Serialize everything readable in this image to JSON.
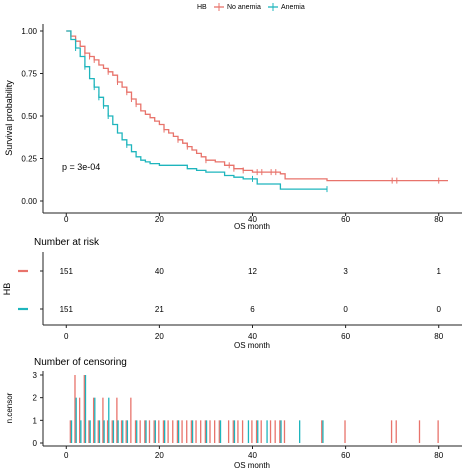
{
  "legend": {
    "title": "HB",
    "entries": [
      {
        "label": "No anemia",
        "color": "#e8736b"
      },
      {
        "label": "Anemia",
        "color": "#1eb5bd"
      }
    ]
  },
  "chart_data": [
    {
      "type": "line",
      "subtype": "kaplan-meier",
      "title": "",
      "xlabel": "OS month",
      "ylabel": "Survival probability",
      "xlim": [
        -5,
        85
      ],
      "ylim": [
        0,
        1
      ],
      "xticks": [
        "0",
        "20",
        "40",
        "60",
        "80"
      ],
      "yticks": [
        "0.00",
        "0.25",
        "0.50",
        "0.75",
        "1.00"
      ],
      "annotation": "p = 3e-04",
      "grid": false,
      "legend_position": "top",
      "series": [
        {
          "name": "No anemia",
          "color": "#e8736b",
          "x": [
            0,
            1,
            2,
            3,
            4,
            5,
            6,
            7,
            8,
            9,
            10,
            11,
            12,
            13,
            14,
            15,
            16,
            17,
            18,
            19,
            20,
            21,
            22,
            23,
            24,
            25,
            26,
            27,
            28,
            29,
            30,
            32,
            34,
            36,
            38,
            40,
            42,
            44,
            46,
            47,
            56,
            60,
            70,
            80,
            82
          ],
          "y": [
            1.0,
            0.97,
            0.94,
            0.91,
            0.87,
            0.85,
            0.83,
            0.8,
            0.78,
            0.76,
            0.74,
            0.7,
            0.67,
            0.64,
            0.6,
            0.57,
            0.53,
            0.51,
            0.49,
            0.47,
            0.45,
            0.42,
            0.4,
            0.38,
            0.36,
            0.34,
            0.32,
            0.3,
            0.28,
            0.26,
            0.24,
            0.23,
            0.21,
            0.19,
            0.18,
            0.17,
            0.17,
            0.17,
            0.16,
            0.13,
            0.12,
            0.12,
            0.12,
            0.12,
            0.12
          ],
          "censor_x": [
            1,
            2,
            4,
            5,
            6,
            9,
            11,
            13,
            14,
            15,
            21,
            24,
            26,
            30,
            35,
            36,
            38,
            41,
            42,
            44,
            45,
            70,
            71,
            80
          ]
        },
        {
          "name": "Anemia",
          "color": "#1eb5bd",
          "x": [
            0,
            1,
            2,
            3,
            4,
            5,
            6,
            7,
            8,
            9,
            10,
            11,
            12,
            13,
            14,
            15,
            16,
            17,
            18,
            20,
            22,
            24,
            26,
            28,
            30,
            34,
            36,
            38,
            40,
            41,
            46,
            56
          ],
          "y": [
            1.0,
            0.95,
            0.9,
            0.85,
            0.79,
            0.72,
            0.67,
            0.61,
            0.56,
            0.5,
            0.45,
            0.4,
            0.36,
            0.33,
            0.29,
            0.26,
            0.24,
            0.23,
            0.22,
            0.21,
            0.21,
            0.21,
            0.19,
            0.18,
            0.17,
            0.15,
            0.14,
            0.13,
            0.13,
            0.1,
            0.07,
            0.07
          ],
          "censor_x": [
            2,
            4,
            6,
            7,
            8,
            9,
            13,
            40,
            56
          ]
        }
      ]
    },
    {
      "type": "table",
      "title": "Number at risk",
      "ylabel": "HB",
      "xlabel": "OS month",
      "xlim": [
        -5,
        85
      ],
      "xticks": [
        "0",
        "20",
        "40",
        "60",
        "80"
      ],
      "times": [
        0,
        20,
        40,
        60,
        80
      ],
      "rows": [
        {
          "name": "No anemia",
          "color": "#e8736b",
          "values": [
            "151",
            "40",
            "12",
            "3",
            "1"
          ]
        },
        {
          "name": "Anemia",
          "color": "#1eb5bd",
          "values": [
            "151",
            "21",
            "6",
            "0",
            "0"
          ]
        }
      ]
    },
    {
      "type": "bar",
      "title": "Number of censoring",
      "xlabel": "OS month",
      "ylabel": "n.censor",
      "xlim": [
        -5,
        85
      ],
      "ylim": [
        0,
        3
      ],
      "xticks": [
        "0",
        "20",
        "40",
        "60",
        "80"
      ],
      "yticks": [
        "0",
        "1",
        "2",
        "3"
      ],
      "series": [
        {
          "name": "No anemia",
          "color": "#e8736b",
          "x": [
            1,
            2,
            3,
            4,
            5,
            6,
            7,
            8,
            9,
            10,
            11,
            12,
            13,
            14,
            15,
            16,
            17,
            18,
            19,
            20,
            21,
            22,
            23,
            24,
            25,
            26,
            27,
            28,
            29,
            30,
            31,
            32,
            33,
            35,
            36,
            37,
            38,
            40,
            41,
            42,
            44,
            45,
            46,
            47,
            55,
            60,
            70,
            71,
            76,
            80
          ],
          "values": [
            1,
            3,
            2,
            3,
            1,
            2,
            1,
            2,
            1,
            1,
            2,
            1,
            1,
            2,
            1,
            1,
            1,
            1,
            1,
            1,
            1,
            1,
            1,
            1,
            1,
            1,
            1,
            1,
            1,
            1,
            1,
            1,
            1,
            1,
            1,
            1,
            1,
            1,
            1,
            1,
            1,
            1,
            1,
            1,
            1,
            1,
            1,
            1,
            1,
            1
          ]
        },
        {
          "name": "Anemia",
          "color": "#1eb5bd",
          "x": [
            1,
            2,
            3,
            4,
            5,
            6,
            7,
            8,
            9,
            10,
            11,
            12,
            13,
            15,
            17,
            19,
            21,
            24,
            27,
            30,
            33,
            36,
            39,
            41,
            43,
            46,
            50,
            55
          ],
          "values": [
            1,
            2,
            1,
            3,
            1,
            2,
            1,
            1,
            2,
            1,
            1,
            1,
            1,
            1,
            1,
            1,
            1,
            1,
            1,
            1,
            1,
            1,
            1,
            1,
            1,
            1,
            1,
            1
          ]
        }
      ]
    }
  ]
}
